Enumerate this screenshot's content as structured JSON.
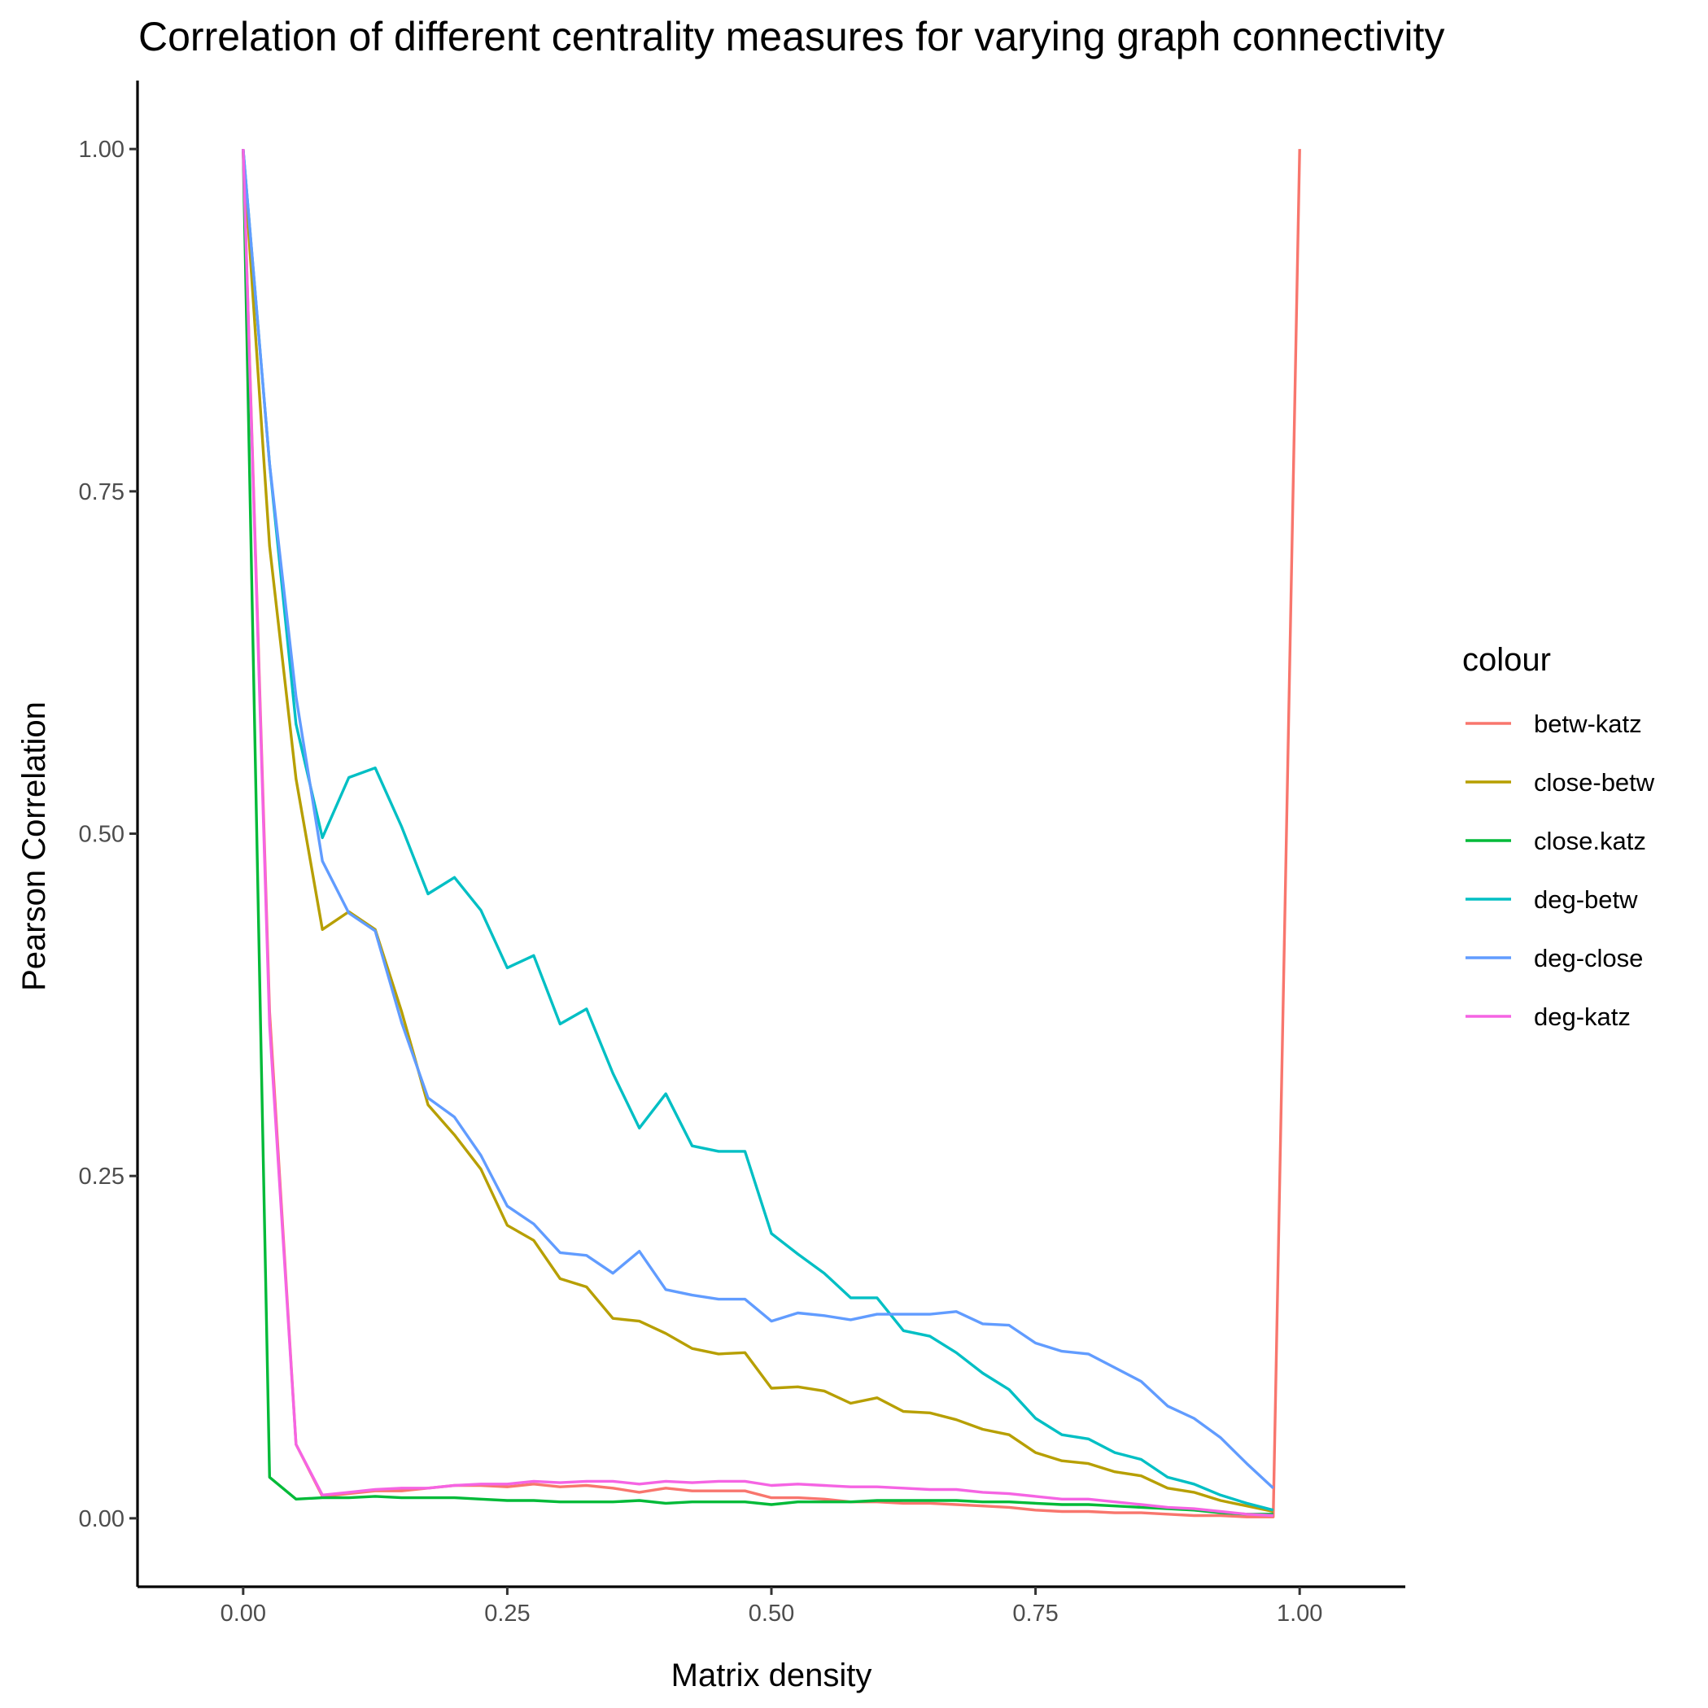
{
  "chart_data": {
    "type": "line",
    "title": "Correlation of different centrality measures for varying graph connectivity",
    "xlabel": "Matrix density",
    "ylabel": "Pearson Correlation",
    "xlim": [
      -0.1,
      1.1
    ],
    "ylim": [
      -0.05,
      1.05
    ],
    "xticks": [
      {
        "value": 0.0,
        "label": "0.00"
      },
      {
        "value": 0.25,
        "label": "0.25"
      },
      {
        "value": 0.5,
        "label": "0.50"
      },
      {
        "value": 0.75,
        "label": "0.75"
      },
      {
        "value": 1.0,
        "label": "1.00"
      }
    ],
    "yticks": [
      {
        "value": 0.0,
        "label": "0.00"
      },
      {
        "value": 0.25,
        "label": "0.25"
      },
      {
        "value": 0.5,
        "label": "0.50"
      },
      {
        "value": 0.75,
        "label": "0.75"
      },
      {
        "value": 1.0,
        "label": "1.00"
      }
    ],
    "grid": false,
    "legend": {
      "title": "colour",
      "position": "right"
    },
    "x": [
      0.0,
      0.025,
      0.05,
      0.075,
      0.1,
      0.125,
      0.15,
      0.175,
      0.2,
      0.225,
      0.25,
      0.275,
      0.3,
      0.325,
      0.35,
      0.375,
      0.4,
      0.425,
      0.45,
      0.475,
      0.5,
      0.525,
      0.55,
      0.575,
      0.6,
      0.625,
      0.65,
      0.675,
      0.7,
      0.725,
      0.75,
      0.775,
      0.8,
      0.825,
      0.85,
      0.875,
      0.9,
      0.925,
      0.95,
      0.975,
      1.0
    ],
    "series": [
      {
        "name": "betw-katz",
        "color": "#F8766D",
        "values": [
          1.0,
          0.37,
          0.054,
          0.016,
          0.018,
          0.02,
          0.02,
          0.022,
          0.024,
          0.024,
          0.023,
          0.025,
          0.023,
          0.024,
          0.022,
          0.019,
          0.022,
          0.02,
          0.02,
          0.02,
          0.015,
          0.015,
          0.014,
          0.012,
          0.012,
          0.011,
          0.011,
          0.01,
          0.009,
          0.008,
          0.006,
          0.005,
          0.005,
          0.004,
          0.004,
          0.003,
          0.002,
          0.002,
          0.001,
          0.001,
          1.0
        ]
      },
      {
        "name": "close-betw",
        "color": "#B79F00",
        "values": [
          1.0,
          0.71,
          0.54,
          0.43,
          0.443,
          0.43,
          0.37,
          0.302,
          0.28,
          0.255,
          0.214,
          0.203,
          0.175,
          0.169,
          0.146,
          0.144,
          0.135,
          0.124,
          0.12,
          0.121,
          0.095,
          0.096,
          0.093,
          0.084,
          0.088,
          0.078,
          0.077,
          0.072,
          0.065,
          0.061,
          0.048,
          0.042,
          0.04,
          0.034,
          0.031,
          0.022,
          0.019,
          0.013,
          0.009,
          0.005,
          null
        ]
      },
      {
        "name": "close.katz",
        "color": "#00BA38",
        "values": [
          1.0,
          0.03,
          0.014,
          0.015,
          0.015,
          0.016,
          0.015,
          0.015,
          0.015,
          0.014,
          0.013,
          0.013,
          0.012,
          0.012,
          0.012,
          0.013,
          0.011,
          0.012,
          0.012,
          0.012,
          0.01,
          0.012,
          0.012,
          0.012,
          0.013,
          0.013,
          0.013,
          0.013,
          0.012,
          0.012,
          0.011,
          0.01,
          0.01,
          0.009,
          0.008,
          0.007,
          0.006,
          0.004,
          0.003,
          0.003,
          null
        ]
      },
      {
        "name": "deg-betw",
        "color": "#00BFC4",
        "values": [
          1.0,
          0.77,
          0.58,
          0.497,
          0.541,
          0.548,
          0.505,
          0.456,
          0.468,
          0.444,
          0.402,
          0.411,
          0.361,
          0.372,
          0.325,
          0.285,
          0.31,
          0.272,
          0.268,
          0.268,
          0.208,
          0.193,
          0.179,
          0.161,
          0.161,
          0.137,
          0.133,
          0.121,
          0.106,
          0.094,
          0.073,
          0.061,
          0.058,
          0.048,
          0.043,
          0.03,
          0.025,
          0.017,
          0.011,
          0.006,
          null
        ]
      },
      {
        "name": "deg-close",
        "color": "#619CFF",
        "values": [
          1.0,
          0.77,
          0.6,
          0.48,
          0.442,
          0.429,
          0.362,
          0.307,
          0.293,
          0.265,
          0.228,
          0.215,
          0.194,
          0.192,
          0.179,
          0.195,
          0.167,
          0.163,
          0.16,
          0.16,
          0.144,
          0.15,
          0.148,
          0.145,
          0.149,
          0.149,
          0.149,
          0.151,
          0.142,
          0.141,
          0.128,
          0.122,
          0.12,
          0.11,
          0.1,
          0.082,
          0.073,
          0.059,
          0.04,
          0.022,
          null
        ]
      },
      {
        "name": "deg-katz",
        "color": "#F564E3",
        "values": [
          1.0,
          0.36,
          0.054,
          0.017,
          0.019,
          0.021,
          0.022,
          0.022,
          0.024,
          0.025,
          0.025,
          0.027,
          0.026,
          0.027,
          0.027,
          0.025,
          0.027,
          0.026,
          0.027,
          0.027,
          0.024,
          0.025,
          0.024,
          0.023,
          0.023,
          0.022,
          0.021,
          0.021,
          0.019,
          0.018,
          0.016,
          0.014,
          0.014,
          0.012,
          0.01,
          0.008,
          0.007,
          0.005,
          0.003,
          0.002,
          null
        ]
      }
    ]
  }
}
